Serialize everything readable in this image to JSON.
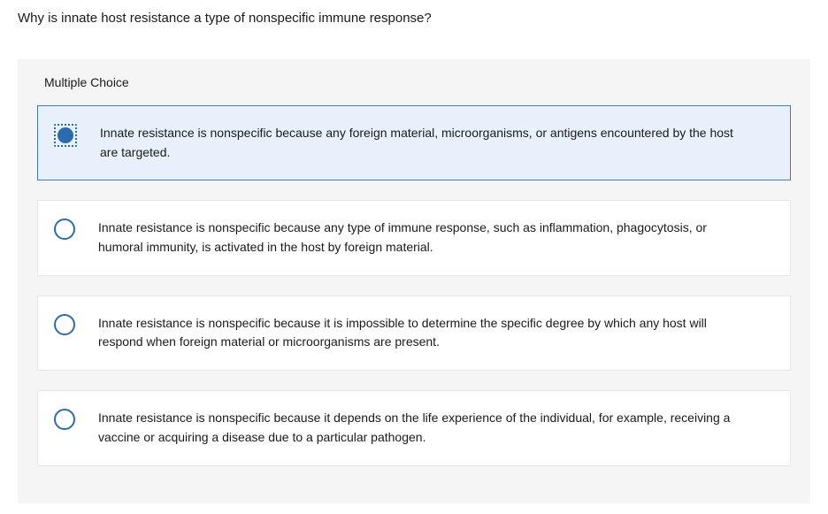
{
  "question": {
    "prompt": "Why is innate host resistance a type of nonspecific immune response?"
  },
  "panel": {
    "title": "Multiple Choice"
  },
  "choices": [
    {
      "text": "Innate resistance is nonspecific because any foreign material, microorganisms, or antigens encountered by the host are targeted.",
      "selected": true
    },
    {
      "text": "Innate resistance is nonspecific because any type of immune response, such as inflammation, phagocytosis, or humoral immunity, is activated in the host by foreign material.",
      "selected": false
    },
    {
      "text": "Innate resistance is nonspecific because it is impossible to determine the specific degree by which any host will respond when foreign material or microorganisms are present.",
      "selected": false
    },
    {
      "text": "Innate resistance is nonspecific because it depends on the life experience of the individual, for example, receiving a vaccine or acquiring a disease due to a particular pathogen.",
      "selected": false
    }
  ],
  "colors": {
    "panel_bg": "#f5f5f5",
    "choice_bg": "#ffffff",
    "choice_border": "#e6e6e6",
    "selected_bg": "#e8f1fb",
    "selected_border": "#3d7cc9",
    "radio_border": "#2b6cb0",
    "radio_fill": "#2b6cb0",
    "text": "#1a1a1a"
  }
}
